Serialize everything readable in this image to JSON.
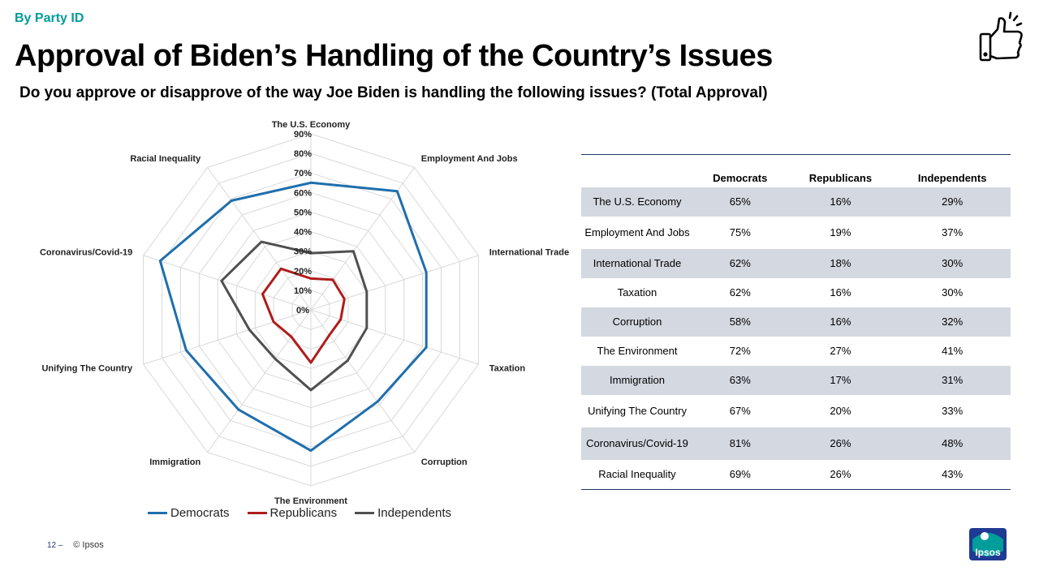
{
  "header": {
    "section_label": "By Party ID",
    "title": "Approval of Biden’s Handling of the Country’s Issues",
    "subtitle": "Do you approve or disapprove of the way Joe Biden is handling the following issues? (Total Approval)"
  },
  "icons": {
    "thumb": "thumbs-up-icon",
    "logo": "ipsos-logo"
  },
  "chart_data": {
    "type": "radar",
    "categories": [
      "The U.S. Economy",
      "Employment And Jobs",
      "International Trade",
      "Taxation",
      "Corruption",
      "The Environment",
      "Immigration",
      "Unifying The Country",
      "Coronavirus/Covid-19",
      "Racial Inequality"
    ],
    "series": [
      {
        "name": "Democrats",
        "color": "#1f6fad",
        "values": [
          65,
          75,
          62,
          62,
          58,
          72,
          63,
          67,
          81,
          69
        ]
      },
      {
        "name": "Republicans",
        "color": "#b01c1c",
        "values": [
          16,
          19,
          18,
          16,
          16,
          27,
          17,
          20,
          26,
          26
        ]
      },
      {
        "name": "Independents",
        "color": "#505050",
        "values": [
          29,
          37,
          30,
          30,
          32,
          41,
          31,
          33,
          48,
          43
        ]
      }
    ],
    "rlim": [
      0,
      90
    ],
    "ticks": [
      "0%",
      "10%",
      "20%",
      "30%",
      "40%",
      "50%",
      "60%",
      "70%",
      "80%",
      "90%"
    ],
    "legend_position": "bottom"
  },
  "table": {
    "headers": [
      "",
      "Democrats",
      "Republicans",
      "Independents"
    ],
    "rows": [
      [
        "The U.S. Economy",
        "65%",
        "16%",
        "29%"
      ],
      [
        "Employment And Jobs",
        "75%",
        "19%",
        "37%"
      ],
      [
        "International Trade",
        "62%",
        "18%",
        "30%"
      ],
      [
        "Taxation",
        "62%",
        "16%",
        "30%"
      ],
      [
        "Corruption",
        "58%",
        "16%",
        "32%"
      ],
      [
        "The Environment",
        "72%",
        "27%",
        "41%"
      ],
      [
        "Immigration",
        "63%",
        "17%",
        "31%"
      ],
      [
        "Unifying The Country",
        "67%",
        "20%",
        "33%"
      ],
      [
        "Coronavirus/Covid-19",
        "81%",
        "26%",
        "48%"
      ],
      [
        "Racial Inequality",
        "69%",
        "26%",
        "43%"
      ]
    ]
  },
  "footer": {
    "page": "12 –",
    "copyright": "© Ipsos"
  },
  "logo_text": "Ipsos"
}
